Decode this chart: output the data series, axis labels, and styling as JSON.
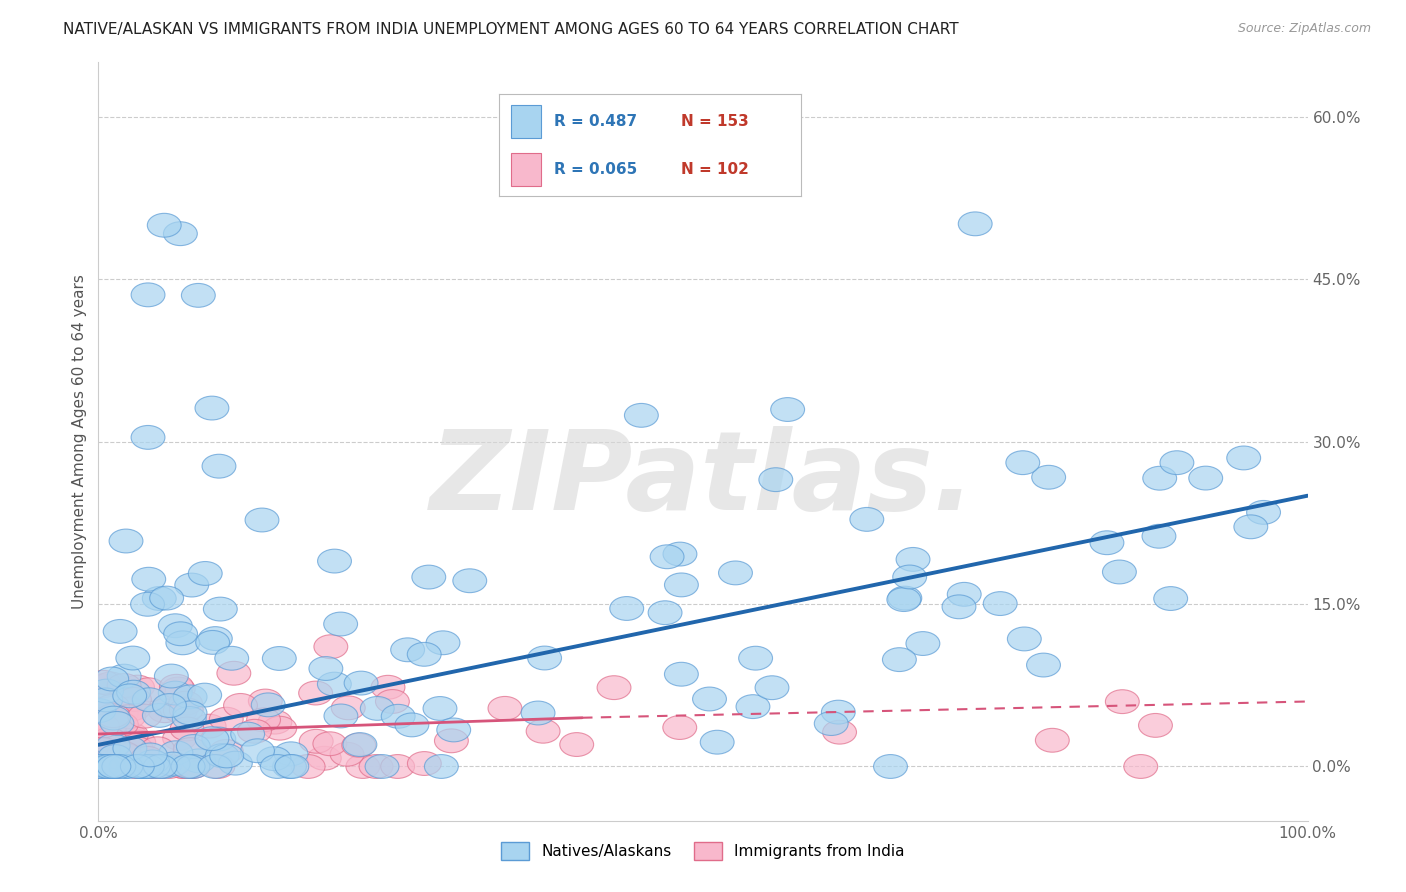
{
  "title": "NATIVE/ALASKAN VS IMMIGRANTS FROM INDIA UNEMPLOYMENT AMONG AGES 60 TO 64 YEARS CORRELATION CHART",
  "source": "Source: ZipAtlas.com",
  "ylabel": "Unemployment Among Ages 60 to 64 years",
  "xlim": [
    0,
    100
  ],
  "ylim": [
    -5,
    65
  ],
  "xticks": [
    0,
    20,
    40,
    60,
    80,
    100
  ],
  "xticklabels": [
    "0.0%",
    "",
    "",
    "",
    "",
    "100.0%"
  ],
  "yticks": [
    0,
    15,
    30,
    45,
    60
  ],
  "yticklabels": [
    "0.0%",
    "15.0%",
    "30.0%",
    "45.0%",
    "60.0%"
  ],
  "native_color": "#a8d4f0",
  "native_edge": "#5b9bd5",
  "india_color": "#f8b8cc",
  "india_edge": "#e06c8a",
  "native_R": 0.487,
  "native_N": 153,
  "india_R": 0.065,
  "india_N": 102,
  "native_line_color": "#2166ac",
  "india_line_color": "#d6547a",
  "watermark": "ZIPatlas.",
  "background_color": "#ffffff",
  "legend_R_color": "#2e75b6",
  "legend_N_color": "#c0392b"
}
